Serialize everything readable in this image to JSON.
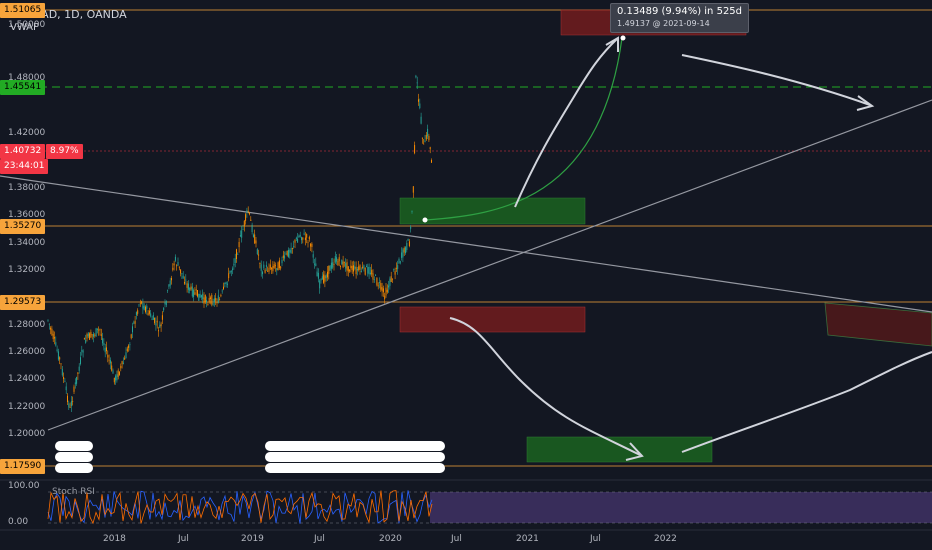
{
  "header": {
    "symbol": "USDCAD, 1D, OANDA",
    "indicator": "VWAP"
  },
  "price_axis": {
    "ticks": [
      "1.50000",
      "1.48000",
      "1.42000",
      "1.40000",
      "1.38000",
      "1.36000",
      "1.34000",
      "1.32000",
      "1.30000",
      "1.28000",
      "1.26000",
      "1.24000",
      "1.22000",
      "1.20000"
    ]
  },
  "price_tags": {
    "top": "1.51065",
    "green": "1.45541",
    "current": "1.40732",
    "current_pct": "8.97%",
    "countdown": "23:44:01",
    "level1": "1.35270",
    "level2": "1.29573",
    "level3": "1.17590"
  },
  "measure": {
    "line1": "0.13489 (9.94%) in 525d",
    "line2": "1.49137 @ 2021-09-14"
  },
  "time_axis": {
    "labels": [
      "2018",
      "Jul",
      "2019",
      "Jul",
      "2020",
      "Jul",
      "2021",
      "Jul",
      "2022"
    ]
  },
  "oscillator": {
    "title": "Stoch RSI",
    "ticks": [
      "100.00",
      "0.00"
    ]
  },
  "colors": {
    "bg": "#131722",
    "up": "#fb8c00",
    "down": "#26a69a",
    "green_zone": "#1b5e20",
    "red_zone": "#7f1d1d",
    "current_tag": "#f23645",
    "green_tag": "#22ab24",
    "orange_tag": "#f7a43b"
  }
}
